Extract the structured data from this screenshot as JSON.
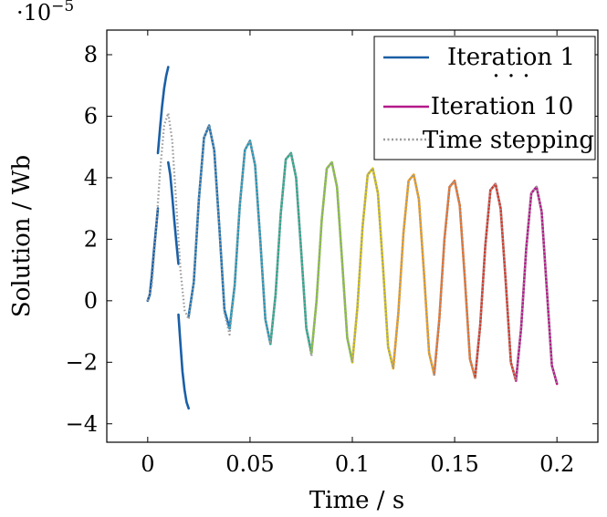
{
  "chart_data": {
    "type": "line",
    "xlabel": "Time / s",
    "ylabel": "Solution / Wb",
    "multiplier": "·10",
    "multiplier_exp": "−5",
    "xlim": [
      -0.02,
      0.22
    ],
    "ylim": [
      -4.6,
      8.8
    ],
    "xticks": [
      0,
      0.05,
      0.1,
      0.15,
      0.2
    ],
    "xtick_labels": [
      "0",
      "0.05",
      "0.1",
      "0.15",
      "0.2"
    ],
    "yticks": [
      -4,
      -2,
      0,
      2,
      4,
      6,
      8
    ],
    "ytick_labels": [
      "−4",
      "−2",
      "0",
      "2",
      "4",
      "6",
      "8"
    ],
    "legend": {
      "position": "top-right",
      "entries": [
        {
          "label": "Iteration 1",
          "color": "#1a5fa6",
          "style": "solid"
        },
        {
          "label": "· · ·",
          "color": "",
          "style": "none"
        },
        {
          "label": "Iteration 10",
          "color": "#b5198a",
          "style": "solid"
        },
        {
          "label": "Time stepping",
          "color": "#999999",
          "style": "dotted"
        }
      ]
    },
    "series": [
      {
        "name": "Iteration 1",
        "color": "#1a5fa6",
        "x": [
          0.005,
          0.006,
          0.007,
          0.008,
          0.009,
          0.01
        ],
        "y": [
          4.8,
          5.6,
          6.3,
          6.9,
          7.3,
          7.6
        ]
      },
      {
        "name": "",
        "color": "#1a5fa6",
        "x": [
          0.01,
          0.011,
          0.012,
          0.013,
          0.014,
          0.015
        ],
        "y": [
          4.5,
          4.1,
          3.4,
          2.6,
          1.9,
          1.2
        ]
      },
      {
        "name": "",
        "color": "#1a5fa6",
        "x": [
          0.015,
          0.016,
          0.017,
          0.018,
          0.019,
          0.02
        ],
        "y": [
          -0.45,
          -1.4,
          -2.3,
          -2.9,
          -3.3,
          -3.5
        ]
      },
      {
        "name": "",
        "color": "#1e73b4",
        "x": [
          0.02,
          0.0225,
          0.025,
          0.0275,
          0.03,
          0.0325,
          0.035,
          0.0375,
          0.04
        ],
        "y": [
          -0.5,
          0.6,
          3.3,
          5.3,
          5.7,
          4.9,
          2.4,
          -0.3,
          -0.9
        ]
      },
      {
        "name": "",
        "color": "#2596b8",
        "x": [
          0.04,
          0.0425,
          0.045,
          0.0475,
          0.05,
          0.0525,
          0.055,
          0.0575,
          0.06
        ],
        "y": [
          -0.9,
          0.5,
          3.1,
          4.9,
          5.2,
          4.4,
          2.0,
          -0.6,
          -1.4
        ]
      },
      {
        "name": "",
        "color": "#2aa88e",
        "x": [
          0.06,
          0.0625,
          0.065,
          0.0675,
          0.07,
          0.0725,
          0.075,
          0.0775,
          0.08
        ],
        "y": [
          -1.4,
          0.2,
          2.8,
          4.6,
          4.8,
          4.0,
          1.6,
          -0.9,
          -1.7
        ]
      },
      {
        "name": "",
        "color": "#8cc63f",
        "x": [
          0.08,
          0.0825,
          0.085,
          0.0875,
          0.09,
          0.0925,
          0.095,
          0.0975,
          0.1
        ],
        "y": [
          -1.7,
          0.0,
          2.6,
          4.3,
          4.5,
          3.7,
          1.3,
          -1.2,
          -2.0
        ]
      },
      {
        "name": "",
        "color": "#d6c316",
        "x": [
          0.1,
          0.1025,
          0.105,
          0.1075,
          0.11,
          0.1125,
          0.115,
          0.1175,
          0.12
        ],
        "y": [
          -2.0,
          -0.2,
          2.4,
          4.1,
          4.3,
          3.5,
          1.1,
          -1.5,
          -2.2
        ]
      },
      {
        "name": "",
        "color": "#f0a020",
        "x": [
          0.12,
          0.1225,
          0.125,
          0.1275,
          0.13,
          0.1325,
          0.135,
          0.1375,
          0.14
        ],
        "y": [
          -2.2,
          -0.4,
          2.2,
          3.9,
          4.1,
          3.3,
          0.9,
          -1.7,
          -2.4
        ]
      },
      {
        "name": "",
        "color": "#e8702a",
        "x": [
          0.14,
          0.1425,
          0.145,
          0.1475,
          0.15,
          0.1525,
          0.155,
          0.1575,
          0.16
        ],
        "y": [
          -2.4,
          -0.6,
          2.0,
          3.7,
          3.9,
          3.1,
          0.7,
          -1.9,
          -2.5
        ]
      },
      {
        "name": "",
        "color": "#d23a2c",
        "x": [
          0.16,
          0.1625,
          0.165,
          0.1675,
          0.17,
          0.1725,
          0.175,
          0.1775,
          0.18
        ],
        "y": [
          -2.5,
          -0.8,
          1.8,
          3.6,
          3.8,
          3.0,
          0.6,
          -2.0,
          -2.6
        ]
      },
      {
        "name": "Iteration 10",
        "color": "#b5198a",
        "x": [
          0.18,
          0.1825,
          0.185,
          0.1875,
          0.19,
          0.1925,
          0.195,
          0.1975,
          0.2
        ],
        "y": [
          -2.6,
          -0.9,
          1.7,
          3.5,
          3.7,
          2.9,
          0.4,
          -2.1,
          -2.7
        ]
      },
      {
        "name": "",
        "color": "#1a5fa6",
        "x": [
          0,
          0.001,
          0.002,
          0.003,
          0.004,
          0.005
        ],
        "y": [
          0,
          0.2,
          0.8,
          1.6,
          2.3,
          3.0
        ]
      },
      {
        "name": "Time stepping",
        "color": "#999999",
        "dotted": true,
        "x": [
          0,
          0.002,
          0.004,
          0.006,
          0.008,
          0.01,
          0.012,
          0.014,
          0.016,
          0.018,
          0.02,
          0.0225,
          0.025,
          0.0275,
          0.03,
          0.0325,
          0.035,
          0.0375,
          0.04,
          0.0425,
          0.045,
          0.0475,
          0.05,
          0.0525,
          0.055,
          0.0575,
          0.06,
          0.0625,
          0.065,
          0.0675,
          0.07,
          0.0725,
          0.075,
          0.0775,
          0.08,
          0.0825,
          0.085,
          0.0875,
          0.09,
          0.0925,
          0.095,
          0.0975,
          0.1,
          0.1025,
          0.105,
          0.1075,
          0.11,
          0.1125,
          0.115,
          0.1175,
          0.12,
          0.1225,
          0.125,
          0.1275,
          0.13,
          0.1325,
          0.135,
          0.1375,
          0.14,
          0.1425,
          0.145,
          0.1475,
          0.15,
          0.1525,
          0.155,
          0.1575,
          0.16,
          0.1625,
          0.165,
          0.1675,
          0.17,
          0.1725,
          0.175,
          0.1775,
          0.18,
          0.1825,
          0.185,
          0.1875,
          0.19,
          0.1925,
          0.195,
          0.1975,
          0.2
        ],
        "y": [
          0,
          0.5,
          2.2,
          4.2,
          5.7,
          6.1,
          5.2,
          3.1,
          1.0,
          -0.3,
          -0.6,
          0.6,
          3.3,
          5.3,
          5.7,
          4.9,
          2.4,
          -0.4,
          -1.1,
          0.5,
          3.1,
          4.9,
          5.2,
          4.4,
          2.0,
          -0.6,
          -1.4,
          0.2,
          2.8,
          4.6,
          4.8,
          4.0,
          1.6,
          -0.9,
          -1.8,
          0.0,
          2.6,
          4.3,
          4.5,
          3.7,
          1.3,
          -1.2,
          -2.0,
          -0.2,
          2.4,
          4.1,
          4.3,
          3.5,
          1.1,
          -1.5,
          -2.2,
          -0.4,
          2.2,
          3.9,
          4.1,
          3.3,
          0.9,
          -1.7,
          -2.4,
          -0.6,
          2.0,
          3.7,
          3.9,
          3.1,
          0.7,
          -1.9,
          -2.5,
          -0.8,
          1.8,
          3.6,
          3.8,
          3.0,
          0.6,
          -2.0,
          -2.6,
          -0.9,
          1.7,
          3.5,
          3.7,
          2.9,
          0.4,
          -2.1,
          -2.75
        ]
      }
    ]
  }
}
